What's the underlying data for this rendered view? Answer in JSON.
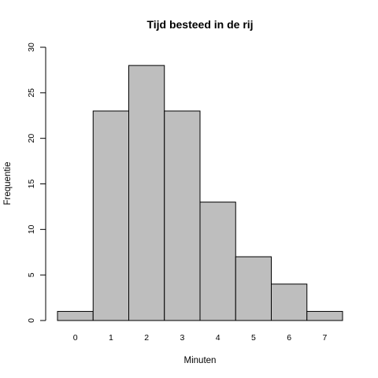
{
  "chart_data": {
    "type": "bar",
    "title": "Tijd besteed in de rij",
    "xlabel": "Minuten",
    "ylabel": "Frequentie",
    "categories": [
      "0",
      "1",
      "2",
      "3",
      "4",
      "5",
      "6",
      "7"
    ],
    "values": [
      1,
      23,
      28,
      23,
      13,
      7,
      4,
      1
    ],
    "ylim": [
      0,
      30
    ],
    "yticks": [
      "0",
      "5",
      "10",
      "15",
      "20",
      "25",
      "30"
    ],
    "grid": false,
    "colors": {
      "bar_fill": "#bebebe",
      "bar_stroke": "#000000"
    }
  }
}
